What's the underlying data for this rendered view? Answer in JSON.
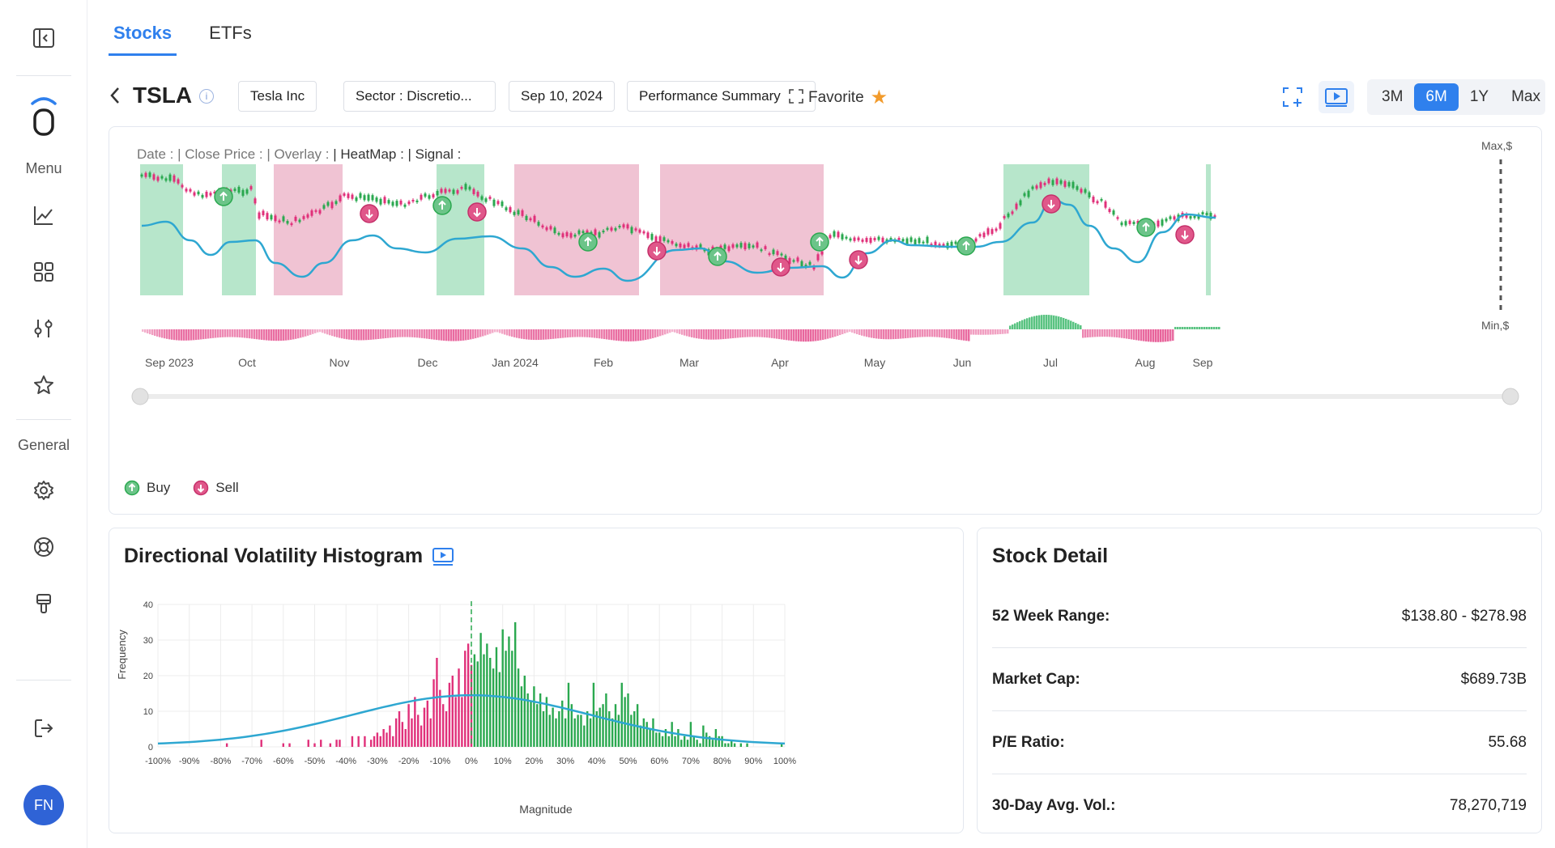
{
  "sidebar": {
    "menu_label": "Menu",
    "general_label": "General",
    "avatar_initials": "FN"
  },
  "tabs": [
    {
      "label": "Stocks",
      "active": true
    },
    {
      "label": "ETFs",
      "active": false
    }
  ],
  "header": {
    "ticker": "TSLA",
    "company": "Tesla Inc",
    "sector": "Sector : Discretio...",
    "date": "Sep 10, 2024",
    "performance": "Performance Summary",
    "favorite": "Favorite",
    "ranges": [
      "3M",
      "6M",
      "1Y",
      "Max"
    ],
    "active_range": "6M",
    "accent_color": "#2f80ed"
  },
  "price_chart": {
    "readout": {
      "date": "Date :",
      "close": "| Close Price :",
      "overlay": "| Overlay :",
      "heatmap": "| HeatMap :",
      "signal": "| Signal :"
    },
    "axis_max_label": "Max,$",
    "axis_min_label": "Min,$",
    "months": [
      "Sep 2023",
      "Oct",
      "Nov",
      "Dec",
      "Jan 2024",
      "Feb",
      "Mar",
      "Apr",
      "May",
      "Jun",
      "Jul",
      "Aug",
      "Sep"
    ],
    "legend": {
      "buy": "Buy",
      "sell": "Sell"
    },
    "colors": {
      "buy": "#6cc489",
      "sell": "#e0578a",
      "line": "#2ea7d1",
      "up_candle": "#2aa84f",
      "down_candle": "#e0307a"
    }
  },
  "histogram": {
    "title": "Directional Volatility Histogram",
    "chart_data": {
      "type": "bar",
      "xlabel": "Magnitude",
      "ylabel": "Frequency",
      "x_ticks": [
        "-100%",
        "-90%",
        "-80%",
        "-70%",
        "-60%",
        "-50%",
        "-40%",
        "-30%",
        "-20%",
        "-10%",
        "0%",
        "10%",
        "20%",
        "30%",
        "40%",
        "50%",
        "60%",
        "70%",
        "80%",
        "90%",
        "100%"
      ],
      "y_ticks": [
        "0",
        "10",
        "20",
        "30",
        "40"
      ],
      "xlim": [
        -100,
        100
      ],
      "ylim": [
        0,
        40
      ],
      "negative_color": "#e0307a",
      "positive_color": "#2aa84f",
      "curve_color": "#2ea7d1",
      "bars": [
        [
          -78,
          1
        ],
        [
          -67,
          2
        ],
        [
          -60,
          1
        ],
        [
          -58,
          1
        ],
        [
          -52,
          2
        ],
        [
          -50,
          1
        ],
        [
          -48,
          2
        ],
        [
          -45,
          1
        ],
        [
          -43,
          2
        ],
        [
          -42,
          2
        ],
        [
          -38,
          3
        ],
        [
          -36,
          3
        ],
        [
          -34,
          3
        ],
        [
          -32,
          2
        ],
        [
          -31,
          3
        ],
        [
          -30,
          4
        ],
        [
          -29,
          3
        ],
        [
          -28,
          5
        ],
        [
          -27,
          4
        ],
        [
          -26,
          6
        ],
        [
          -25,
          3
        ],
        [
          -24,
          8
        ],
        [
          -23,
          10
        ],
        [
          -22,
          7
        ],
        [
          -21,
          5
        ],
        [
          -20,
          12
        ],
        [
          -19,
          8
        ],
        [
          -18,
          14
        ],
        [
          -17,
          9
        ],
        [
          -16,
          6
        ],
        [
          -15,
          11
        ],
        [
          -14,
          13
        ],
        [
          -13,
          8
        ],
        [
          -12,
          19
        ],
        [
          -11,
          25
        ],
        [
          -10,
          16
        ],
        [
          -9,
          12
        ],
        [
          -8,
          10
        ],
        [
          -7,
          18
        ],
        [
          -6,
          20
        ],
        [
          -5,
          14
        ],
        [
          -4,
          22
        ],
        [
          -3,
          14
        ],
        [
          -2,
          27
        ],
        [
          -1,
          29
        ],
        [
          0,
          23
        ],
        [
          1,
          26
        ],
        [
          2,
          24
        ],
        [
          3,
          32
        ],
        [
          4,
          26
        ],
        [
          5,
          29
        ],
        [
          6,
          25
        ],
        [
          7,
          22
        ],
        [
          8,
          28
        ],
        [
          9,
          21
        ],
        [
          10,
          33
        ],
        [
          11,
          27
        ],
        [
          12,
          31
        ],
        [
          13,
          27
        ],
        [
          14,
          35
        ],
        [
          15,
          22
        ],
        [
          16,
          17
        ],
        [
          17,
          20
        ],
        [
          18,
          15
        ],
        [
          19,
          13
        ],
        [
          20,
          17
        ],
        [
          21,
          12
        ],
        [
          22,
          15
        ],
        [
          23,
          10
        ],
        [
          24,
          14
        ],
        [
          25,
          9
        ],
        [
          26,
          11
        ],
        [
          27,
          8
        ],
        [
          28,
          10
        ],
        [
          29,
          13
        ],
        [
          30,
          8
        ],
        [
          31,
          18
        ],
        [
          32,
          12
        ],
        [
          33,
          8
        ],
        [
          34,
          9
        ],
        [
          35,
          9
        ],
        [
          36,
          6
        ],
        [
          37,
          10
        ],
        [
          38,
          8
        ],
        [
          39,
          18
        ],
        [
          40,
          10
        ],
        [
          41,
          11
        ],
        [
          42,
          12
        ],
        [
          43,
          15
        ],
        [
          44,
          10
        ],
        [
          45,
          8
        ],
        [
          46,
          12
        ],
        [
          47,
          9
        ],
        [
          48,
          18
        ],
        [
          49,
          14
        ],
        [
          50,
          15
        ],
        [
          51,
          9
        ],
        [
          52,
          10
        ],
        [
          53,
          12
        ],
        [
          54,
          6
        ],
        [
          55,
          8
        ],
        [
          56,
          7
        ],
        [
          57,
          5
        ],
        [
          58,
          8
        ],
        [
          59,
          4
        ],
        [
          60,
          4
        ],
        [
          61,
          3
        ],
        [
          62,
          5
        ],
        [
          63,
          3
        ],
        [
          64,
          7
        ],
        [
          65,
          3
        ],
        [
          66,
          5
        ],
        [
          67,
          2
        ],
        [
          68,
          3
        ],
        [
          69,
          2
        ],
        [
          70,
          7
        ],
        [
          71,
          3
        ],
        [
          72,
          2
        ],
        [
          73,
          1
        ],
        [
          74,
          6
        ],
        [
          75,
          4
        ],
        [
          76,
          3
        ],
        [
          77,
          2
        ],
        [
          78,
          5
        ],
        [
          79,
          3
        ],
        [
          80,
          3
        ],
        [
          81,
          1
        ],
        [
          82,
          1
        ],
        [
          83,
          2
        ],
        [
          84,
          1
        ],
        [
          86,
          1
        ],
        [
          88,
          1
        ],
        [
          99,
          1
        ]
      ]
    }
  },
  "stock_detail": {
    "title": "Stock Detail",
    "rows": [
      {
        "label": "52 Week Range:",
        "value": "$138.80 - $278.98"
      },
      {
        "label": "Market Cap:",
        "value": "$689.73B"
      },
      {
        "label": "P/E Ratio:",
        "value": "55.68"
      },
      {
        "label": "30-Day Avg. Vol.:",
        "value": "78,270,719"
      }
    ]
  }
}
